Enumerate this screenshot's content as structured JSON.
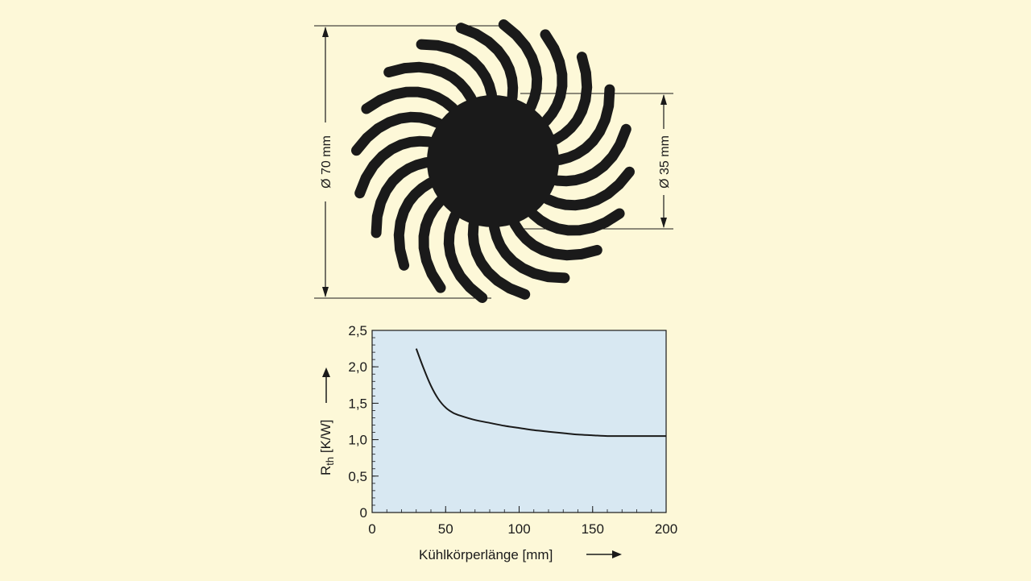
{
  "heatsink": {
    "outer_diameter_label": "Ø 70 mm",
    "inner_diameter_label": "Ø 35 mm",
    "fin_count": 20
  },
  "chart_data": {
    "type": "line",
    "xlabel": "Kühlkörperlänge [mm]",
    "ylabel_main": "R",
    "ylabel_sub": "th",
    "ylabel_unit": " [K/W]",
    "xlim": [
      0,
      200
    ],
    "ylim": [
      0,
      2.5
    ],
    "x_ticks": [
      0,
      50,
      100,
      150,
      200
    ],
    "y_ticks": [
      0,
      0.5,
      1.0,
      1.5,
      2.0,
      2.5
    ],
    "x_tick_labels": [
      "0",
      "50",
      "100",
      "150",
      "200"
    ],
    "y_tick_labels": [
      "0",
      "0,5",
      "1,0",
      "1,5",
      "2,0",
      "2,5"
    ],
    "grid": false,
    "series": [
      {
        "x": [
          30,
          35,
          40,
          45,
          50,
          55,
          60,
          70,
          80,
          90,
          100,
          110,
          120,
          130,
          140,
          150,
          160,
          170,
          180,
          190,
          200
        ],
        "y": [
          2.25,
          1.98,
          1.74,
          1.56,
          1.44,
          1.37,
          1.33,
          1.27,
          1.23,
          1.19,
          1.16,
          1.13,
          1.11,
          1.09,
          1.07,
          1.06,
          1.05,
          1.05,
          1.05,
          1.05,
          1.05
        ]
      }
    ],
    "colors": {
      "plot_background": "#d8e8f2",
      "line": "#1a1a1a",
      "page_background": "#fdf8d8"
    }
  }
}
